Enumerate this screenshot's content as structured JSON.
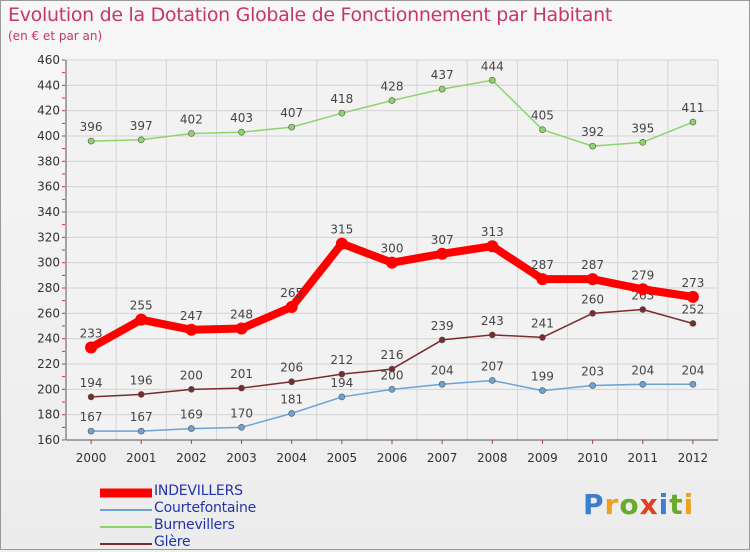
{
  "header": {
    "title": "Evolution de la Dotation Globale de Fonctionnement par Habitant",
    "subtitle": "(en € et par an)"
  },
  "logo": {
    "text": "Proxiti",
    "colors": [
      "#3a7fd0",
      "#f0a020",
      "#6aaa2a",
      "#e04020",
      "#3a7fd0",
      "#6aaa2a",
      "#f0a020"
    ]
  },
  "chart_data": {
    "type": "line",
    "title": "Evolution de la Dotation Globale de Fonctionnement par Habitant",
    "subtitle": "(en € et par an)",
    "x": [
      "2000",
      "2001",
      "2002",
      "2003",
      "2004",
      "2005",
      "2006",
      "2007",
      "2008",
      "2009",
      "2010",
      "2011",
      "2012"
    ],
    "ylim": [
      160,
      460
    ],
    "yticks": [
      160,
      180,
      200,
      220,
      240,
      260,
      280,
      300,
      320,
      340,
      360,
      380,
      400,
      420,
      440,
      460
    ],
    "grid": true,
    "legend_position": "bottom-left",
    "series": [
      {
        "name": "INDEVILLERS",
        "color": "#ff0000",
        "values": [
          233,
          255,
          247,
          248,
          265,
          315,
          300,
          307,
          313,
          287,
          287,
          279,
          273
        ]
      },
      {
        "name": "Courtefontaine",
        "color": "#6ba3d6",
        "values": [
          167,
          167,
          169,
          170,
          181,
          194,
          200,
          204,
          207,
          199,
          203,
          204,
          204
        ]
      },
      {
        "name": "Burnevillers",
        "color": "#8fd46b",
        "values": [
          396,
          397,
          402,
          403,
          407,
          418,
          428,
          437,
          444,
          405,
          392,
          395,
          411
        ]
      },
      {
        "name": "Glère",
        "color": "#7a2c2c",
        "values": [
          194,
          196,
          200,
          201,
          206,
          212,
          216,
          239,
          243,
          241,
          260,
          263,
          252
        ]
      }
    ]
  }
}
